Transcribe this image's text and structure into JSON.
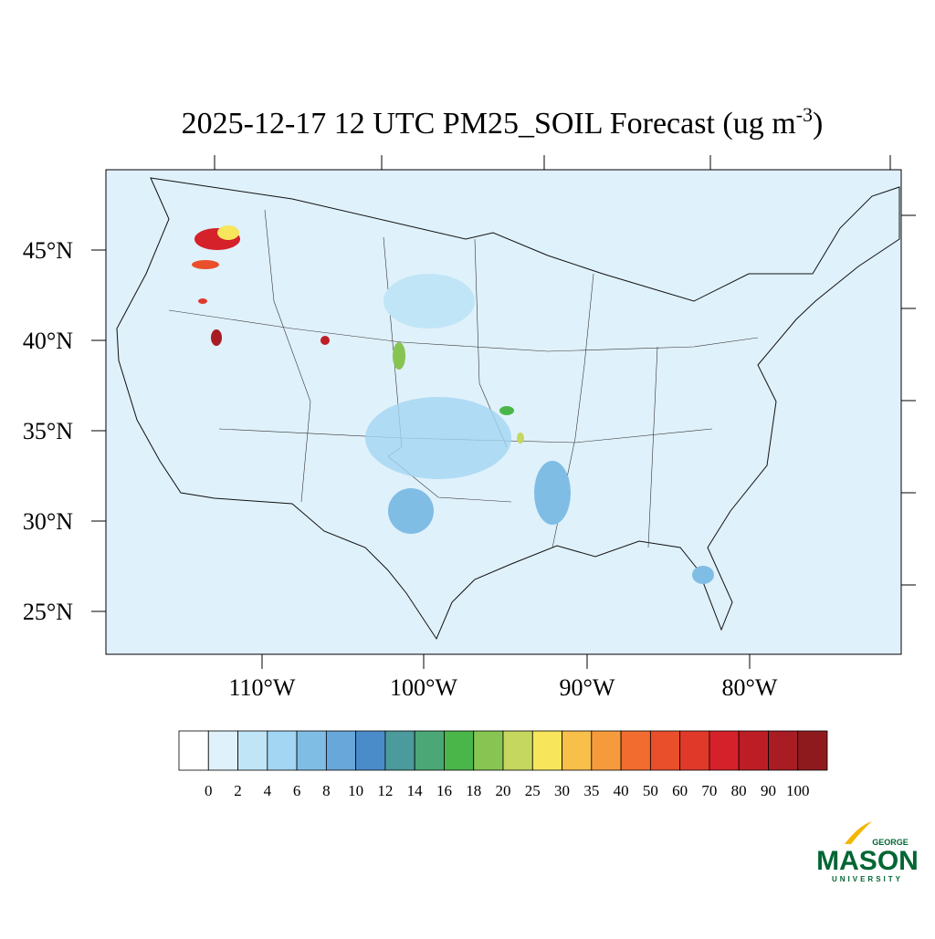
{
  "header": {
    "title": "2025-12-17 12 UTC PM25_SOIL Forecast (ug m",
    "title_superscript": "-3",
    "title_suffix": ")"
  },
  "map": {
    "lat_labels": [
      "45°N",
      "40°N",
      "35°N",
      "30°N",
      "25°N"
    ],
    "lon_labels": [
      "110°W",
      "100°W",
      "90°W",
      "80°W"
    ]
  },
  "colorbar": {
    "levels": [
      0,
      2,
      4,
      6,
      8,
      10,
      12,
      14,
      16,
      18,
      20,
      25,
      30,
      35,
      40,
      50,
      60,
      70,
      80,
      90,
      100
    ],
    "colors": [
      "#ffffff",
      "#dff1fb",
      "#c0e5f7",
      "#a2d6f2",
      "#80bde5",
      "#67a7da",
      "#4a8bca",
      "#4b9a9c",
      "#4ba775",
      "#4ab64a",
      "#87c452",
      "#c5d75e",
      "#f7e65c",
      "#f8bf4b",
      "#f69b3c",
      "#f26b2f",
      "#ea4f2b",
      "#e0392a",
      "#d4212a",
      "#bd1e26",
      "#a81c23",
      "#8f1a1e"
    ]
  },
  "logo": {
    "top": "GEORGE",
    "main": "MASON",
    "bottom": "UNIVERSITY"
  }
}
